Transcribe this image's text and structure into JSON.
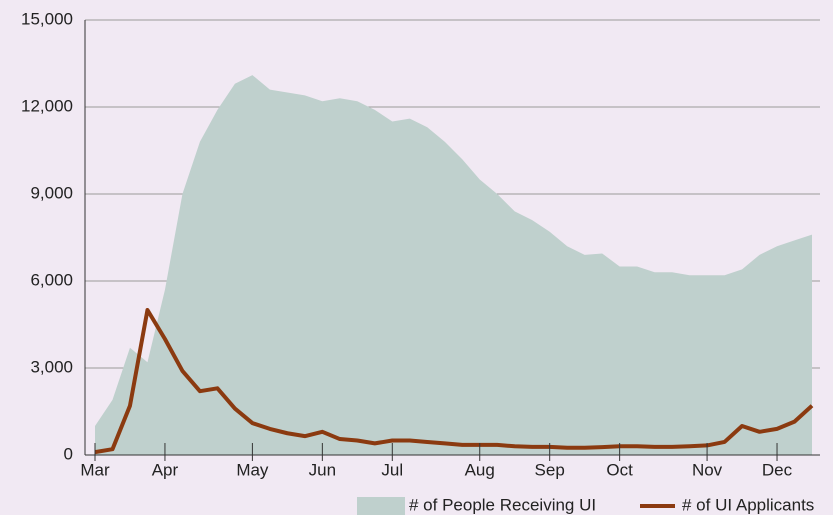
{
  "chart_data": {
    "type": "area",
    "categories": [
      "Mar",
      null,
      null,
      null,
      "Apr",
      null,
      null,
      null,
      null,
      "May",
      null,
      null,
      null,
      "Jun",
      null,
      null,
      null,
      "Jul",
      null,
      null,
      null,
      null,
      "Aug",
      null,
      null,
      null,
      "Sep",
      null,
      null,
      null,
      "Oct",
      null,
      null,
      null,
      null,
      "Nov",
      null,
      null,
      null,
      "Dec",
      null,
      null
    ],
    "series": [
      {
        "name": "# of People Receiving UI",
        "type": "area",
        "color": "#bfd0cd",
        "values": [
          1000,
          1900,
          3700,
          3200,
          5700,
          9000,
          10800,
          11900,
          12800,
          13100,
          12600,
          12500,
          12400,
          12200,
          12300,
          12200,
          11900,
          11500,
          11600,
          11300,
          10800,
          10200,
          9500,
          9000,
          8400,
          8100,
          7700,
          7200,
          6900,
          6950,
          6500,
          6500,
          6300,
          6300,
          6200,
          6200,
          6200,
          6400,
          6900,
          7200,
          7400,
          7600
        ]
      },
      {
        "name": "# of UI Applicants",
        "type": "line",
        "color": "#8b3a10",
        "values": [
          100,
          200,
          1700,
          5000,
          4000,
          2900,
          2200,
          2300,
          1600,
          1100,
          900,
          750,
          650,
          800,
          550,
          500,
          400,
          500,
          500,
          450,
          400,
          350,
          350,
          350,
          300,
          280,
          280,
          250,
          250,
          270,
          300,
          300,
          280,
          280,
          300,
          330,
          450,
          1000,
          800,
          900,
          1150,
          1700
        ]
      }
    ],
    "ylim": [
      0,
      15000
    ],
    "yticks": [
      0,
      {
        "value": 3000,
        "label": "3,000"
      },
      {
        "value": 6000,
        "label": "6,000"
      },
      {
        "value": 9000,
        "label": "9,000"
      },
      {
        "value": 12000,
        "label": "12,000"
      },
      {
        "value": 15000,
        "label": "15,000"
      }
    ],
    "grid": true,
    "legend": "bottom-right"
  }
}
